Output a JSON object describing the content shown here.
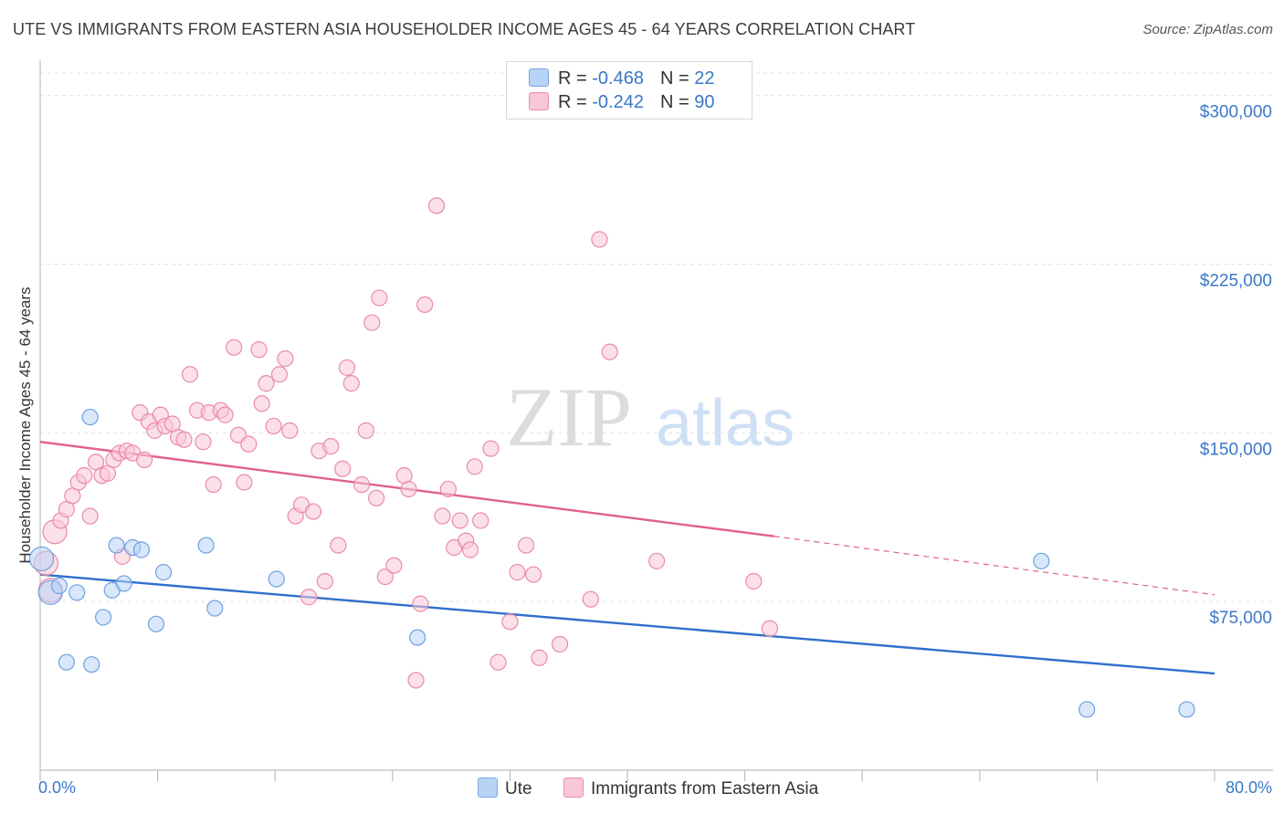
{
  "header": {
    "title": "UTE VS IMMIGRANTS FROM EASTERN ASIA HOUSEHOLDER INCOME AGES 45 - 64 YEARS CORRELATION CHART",
    "source": "Source: ZipAtlas.com"
  },
  "watermark": {
    "zip": "ZIP",
    "atlas": "atlas"
  },
  "legend": {
    "rows": [
      {
        "r_label": "R = ",
        "r_value": "-0.468",
        "n_label": "N = ",
        "n_value": "22",
        "color": "#b8d3f5",
        "border": "#7aa6de"
      },
      {
        "r_label": "R = ",
        "r_value": "-0.242",
        "n_label": "N = ",
        "n_value": "90",
        "color": "#f9c6d6",
        "border": "#e98fae"
      }
    ],
    "bottom": [
      "Ute",
      "Immigrants from Eastern Asia"
    ]
  },
  "chart_data": {
    "type": "scatter",
    "title": "UTE VS IMMIGRANTS FROM EASTERN ASIA HOUSEHOLDER INCOME AGES 45 - 64 YEARS CORRELATION CHART",
    "xlabel": "",
    "ylabel": "Householder Income Ages 45 - 64 years",
    "xlim": [
      0,
      80
    ],
    "ylim": [
      0,
      310000
    ],
    "x_tick_labels": [
      "0.0%",
      "80.0%"
    ],
    "y_ticks": [
      75000,
      150000,
      225000,
      300000
    ],
    "y_tick_labels": [
      "$75,000",
      "$150,000",
      "$225,000",
      "$300,000"
    ],
    "grid": true,
    "legend_position": "top-center",
    "series": [
      {
        "name": "Ute",
        "color": "#6fa1e0",
        "fill": "#b8d3f5",
        "trend": {
          "x": [
            0,
            80
          ],
          "y": [
            87000,
            43000
          ],
          "style": "solid",
          "color": "#2f6fcc"
        },
        "points": [
          [
            0.1,
            94000
          ],
          [
            0.7,
            79000
          ],
          [
            1.3,
            82000
          ],
          [
            1.8,
            48000
          ],
          [
            2.5,
            79000
          ],
          [
            3.4,
            157000
          ],
          [
            3.5,
            47000
          ],
          [
            4.3,
            68000
          ],
          [
            4.9,
            80000
          ],
          [
            5.2,
            100000
          ],
          [
            5.7,
            83000
          ],
          [
            6.3,
            99000
          ],
          [
            6.9,
            98000
          ],
          [
            7.9,
            65000
          ],
          [
            8.4,
            88000
          ],
          [
            11.3,
            100000
          ],
          [
            11.9,
            72000
          ],
          [
            16.1,
            85000
          ],
          [
            25.7,
            59000
          ],
          [
            68.2,
            93000
          ],
          [
            71.3,
            27000
          ],
          [
            78.1,
            27000
          ]
        ]
      },
      {
        "name": "Immigrants from Eastern Asia",
        "color": "#ea8aaa",
        "fill": "#f9c6d6",
        "trend": {
          "x": [
            0,
            50
          ],
          "y": [
            146000,
            104000
          ],
          "style": "solid",
          "color": "#e0608c",
          "extend_to": [
            80,
            78000
          ]
        },
        "points": [
          [
            0.4,
            92000
          ],
          [
            0.7,
            80000
          ],
          [
            1.0,
            106000
          ],
          [
            1.4,
            111000
          ],
          [
            1.8,
            116000
          ],
          [
            2.2,
            122000
          ],
          [
            2.6,
            128000
          ],
          [
            3.0,
            131000
          ],
          [
            3.4,
            113000
          ],
          [
            3.8,
            137000
          ],
          [
            4.2,
            131000
          ],
          [
            4.6,
            132000
          ],
          [
            5.0,
            138000
          ],
          [
            5.4,
            141000
          ],
          [
            5.6,
            95000
          ],
          [
            5.9,
            142000
          ],
          [
            6.3,
            141000
          ],
          [
            6.8,
            159000
          ],
          [
            7.1,
            138000
          ],
          [
            7.4,
            155000
          ],
          [
            7.8,
            151000
          ],
          [
            8.2,
            158000
          ],
          [
            8.5,
            153000
          ],
          [
            9.0,
            154000
          ],
          [
            9.4,
            148000
          ],
          [
            9.8,
            147000
          ],
          [
            10.2,
            176000
          ],
          [
            10.7,
            160000
          ],
          [
            11.1,
            146000
          ],
          [
            11.5,
            159000
          ],
          [
            11.8,
            127000
          ],
          [
            12.3,
            160000
          ],
          [
            12.6,
            158000
          ],
          [
            13.2,
            188000
          ],
          [
            13.5,
            149000
          ],
          [
            13.9,
            128000
          ],
          [
            14.2,
            145000
          ],
          [
            14.9,
            187000
          ],
          [
            15.1,
            163000
          ],
          [
            15.4,
            172000
          ],
          [
            15.9,
            153000
          ],
          [
            16.3,
            176000
          ],
          [
            16.7,
            183000
          ],
          [
            17.0,
            151000
          ],
          [
            17.4,
            113000
          ],
          [
            17.8,
            118000
          ],
          [
            18.3,
            77000
          ],
          [
            18.6,
            115000
          ],
          [
            19.0,
            142000
          ],
          [
            19.4,
            84000
          ],
          [
            19.8,
            144000
          ],
          [
            20.3,
            100000
          ],
          [
            20.6,
            134000
          ],
          [
            20.9,
            179000
          ],
          [
            21.2,
            172000
          ],
          [
            21.9,
            127000
          ],
          [
            22.2,
            151000
          ],
          [
            22.6,
            199000
          ],
          [
            22.9,
            121000
          ],
          [
            23.1,
            210000
          ],
          [
            23.5,
            86000
          ],
          [
            24.1,
            91000
          ],
          [
            24.8,
            131000
          ],
          [
            25.1,
            125000
          ],
          [
            25.6,
            40000
          ],
          [
            25.9,
            74000
          ],
          [
            26.2,
            207000
          ],
          [
            27.0,
            251000
          ],
          [
            27.4,
            113000
          ],
          [
            27.8,
            125000
          ],
          [
            28.2,
            99000
          ],
          [
            28.6,
            111000
          ],
          [
            29.0,
            102000
          ],
          [
            29.3,
            98000
          ],
          [
            29.6,
            135000
          ],
          [
            30.0,
            111000
          ],
          [
            30.7,
            143000
          ],
          [
            31.2,
            48000
          ],
          [
            32.0,
            66000
          ],
          [
            32.5,
            88000
          ],
          [
            33.1,
            100000
          ],
          [
            33.6,
            87000
          ],
          [
            34.0,
            50000
          ],
          [
            35.4,
            56000
          ],
          [
            37.5,
            76000
          ],
          [
            38.1,
            236000
          ],
          [
            38.8,
            186000
          ],
          [
            42.0,
            93000
          ],
          [
            48.6,
            84000
          ],
          [
            49.7,
            63000
          ]
        ]
      }
    ]
  }
}
